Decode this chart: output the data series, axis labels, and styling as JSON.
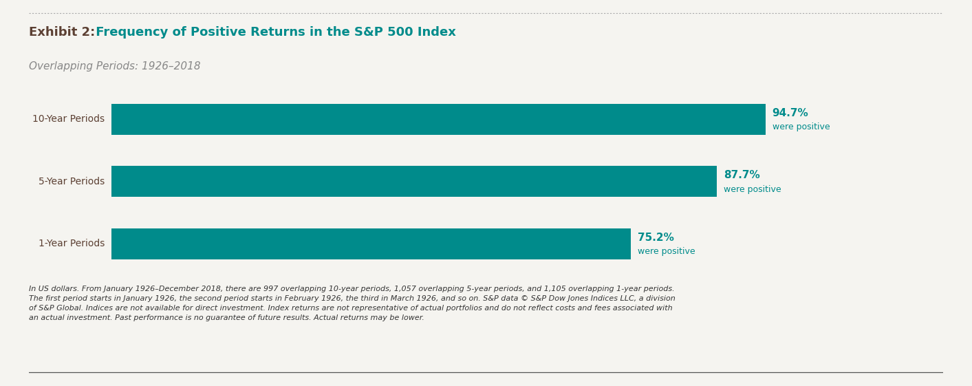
{
  "title_bold": "Exhibit 2:",
  "title_rest": " Frequency of Positive Returns in the S&P 500 Index",
  "subtitle": "Overlapping Periods: 1926–2018",
  "categories": [
    "10-Year Periods",
    "5-Year Periods",
    "1-Year Periods"
  ],
  "values": [
    94.7,
    87.7,
    75.2
  ],
  "bar_color": "#008B8B",
  "label_color": "#008B8B",
  "title_bold_color": "#5C4033",
  "title_rest_color": "#008B8B",
  "subtitle_color": "#888888",
  "ytick_color": "#5C4033",
  "background_color": "#f5f4f0",
  "xlim_max": 100,
  "footnote_line1": "In US dollars. From January 1926–December 2018, there are 997 overlapping 10-year periods, 1,057 overlapping 5-year periods, and 1,105 overlapping 1-year periods.",
  "footnote_line2": "The first period starts in January 1926, the second period starts in February 1926, the third in March 1926, and so on. S&P data © S&P Dow Jones Indices LLC, a division",
  "footnote_line3": "of S&P Global. Indices are not available for direct investment. Index returns are not representative of actual portfolios and do not reflect costs and fees associated with",
  "footnote_line4": "an actual investment. Past performance is no guarantee of future results. Actual returns may be lower.",
  "footnote_color": "#333333",
  "dotted_line_color": "#aaaaaa",
  "bar_height": 0.5,
  "percent_fontsize": 11,
  "label_fontsize": 9,
  "title_fontsize": 13,
  "subtitle_fontsize": 11,
  "ytick_fontsize": 10,
  "footnote_fontsize": 8
}
